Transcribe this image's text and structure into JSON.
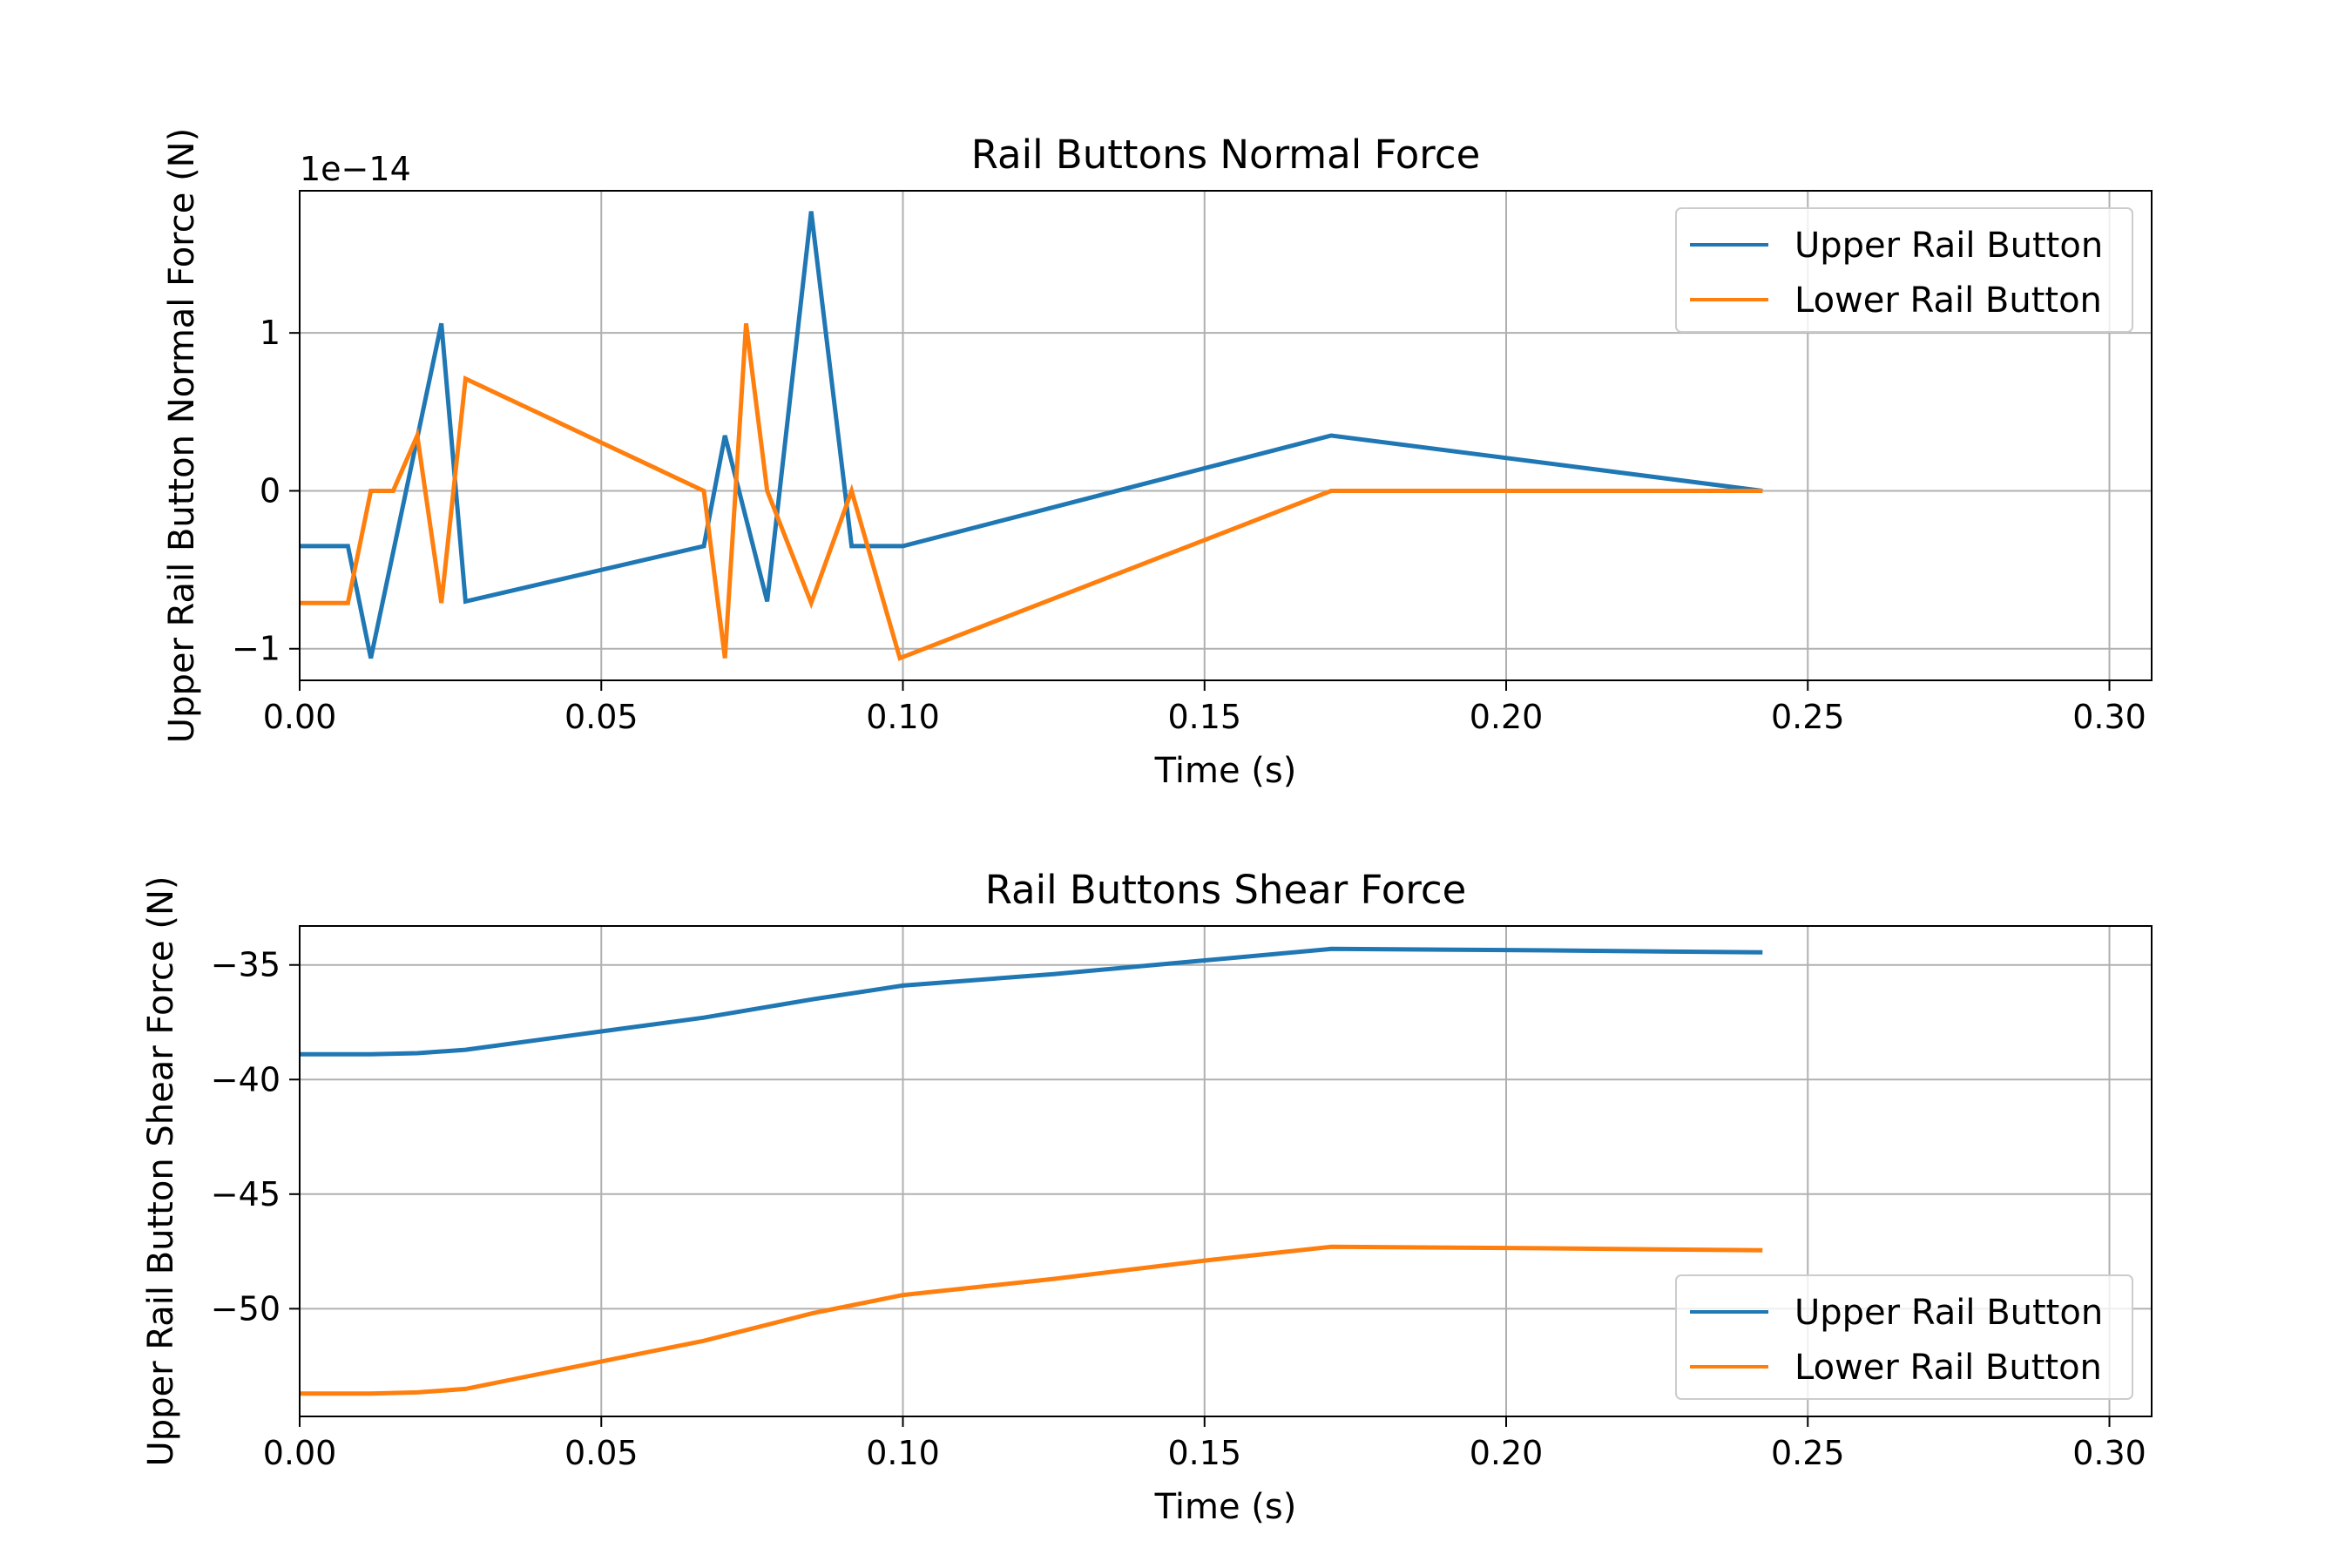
{
  "colors": {
    "upper": "#1f77b4",
    "lower": "#ff7f0e",
    "grid": "#b0b0b0",
    "axes": "#000000",
    "legend_border": "#cccccc"
  },
  "chart_data": [
    {
      "type": "line",
      "title": "Rail Buttons Normal Force",
      "xlabel": "Time (s)",
      "ylabel": "Upper Rail Button Normal Force (N)",
      "offset_label": "1e−14",
      "xlim": [
        0.0,
        0.307
      ],
      "ylim": [
        -1.2,
        1.9
      ],
      "xticks": [
        0.0,
        0.05,
        0.1,
        0.15,
        0.2,
        0.25,
        0.3
      ],
      "xtick_labels": [
        "0.00",
        "0.05",
        "0.10",
        "0.15",
        "0.20",
        "0.25",
        "0.30"
      ],
      "yticks": [
        -1,
        0,
        1
      ],
      "ytick_labels": [
        "−1",
        "0",
        "1"
      ],
      "grid": true,
      "legend": "upper right",
      "series": [
        {
          "name": "Upper Rail Button",
          "color_key": "upper",
          "x": [
            0.0,
            0.008,
            0.0118,
            0.0235,
            0.0275,
            0.067,
            0.0705,
            0.0775,
            0.0848,
            0.0915,
            0.1,
            0.171,
            0.2425
          ],
          "y": [
            -0.35,
            -0.35,
            -1.06,
            1.06,
            -0.7,
            -0.35,
            0.35,
            -0.7,
            1.77,
            -0.35,
            -0.35,
            0.35,
            0.0
          ]
        },
        {
          "name": "Lower Rail Button",
          "color_key": "lower",
          "x": [
            0.0,
            0.008,
            0.0118,
            0.0155,
            0.0195,
            0.0235,
            0.0275,
            0.067,
            0.0705,
            0.074,
            0.0775,
            0.0848,
            0.0915,
            0.0995,
            0.171,
            0.2425
          ],
          "y": [
            -0.71,
            -0.71,
            0.0,
            0.0,
            0.35,
            -0.71,
            0.71,
            0.0,
            -1.06,
            1.06,
            0.0,
            -0.71,
            0.0,
            -1.06,
            0.0,
            0.0
          ]
        }
      ]
    },
    {
      "type": "line",
      "title": "Rail Buttons Shear Force",
      "xlabel": "Time (s)",
      "ylabel": "Upper Rail Button Shear Force (N)",
      "xlim": [
        0.0,
        0.307
      ],
      "ylim": [
        -54.7,
        -33.3
      ],
      "xticks": [
        0.0,
        0.05,
        0.1,
        0.15,
        0.2,
        0.25,
        0.3
      ],
      "xtick_labels": [
        "0.00",
        "0.05",
        "0.10",
        "0.15",
        "0.20",
        "0.25",
        "0.30"
      ],
      "yticks": [
        -35,
        -40,
        -45,
        -50
      ],
      "ytick_labels": [
        "−35",
        "−40",
        "−45",
        "−50"
      ],
      "grid": true,
      "legend": "lower right",
      "series": [
        {
          "name": "Upper Rail Button",
          "color_key": "upper",
          "x": [
            0.0,
            0.0118,
            0.0195,
            0.0275,
            0.05,
            0.067,
            0.085,
            0.1,
            0.125,
            0.15,
            0.171,
            0.2,
            0.2425
          ],
          "y": [
            -38.9,
            -38.9,
            -38.85,
            -38.7,
            -37.9,
            -37.3,
            -36.5,
            -35.9,
            -35.4,
            -34.8,
            -34.3,
            -34.35,
            -34.45
          ]
        },
        {
          "name": "Lower Rail Button",
          "color_key": "lower",
          "x": [
            0.0,
            0.0118,
            0.0195,
            0.0275,
            0.05,
            0.067,
            0.085,
            0.1,
            0.125,
            0.15,
            0.171,
            0.2,
            0.2425
          ],
          "y": [
            -53.7,
            -53.7,
            -53.65,
            -53.5,
            -52.3,
            -51.4,
            -50.2,
            -49.4,
            -48.7,
            -47.9,
            -47.3,
            -47.35,
            -47.45
          ]
        }
      ]
    }
  ]
}
